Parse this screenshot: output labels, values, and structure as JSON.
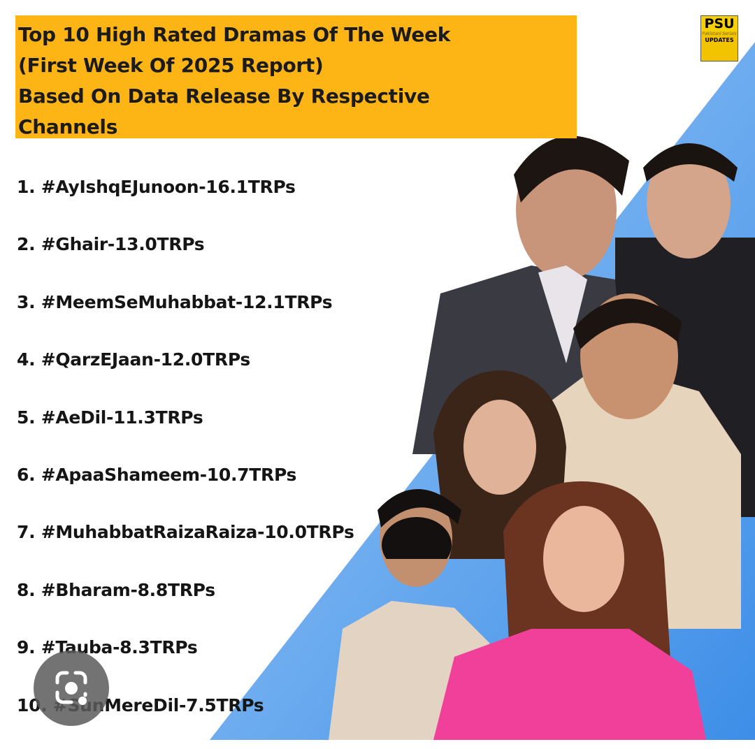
{
  "title_lines": [
    "Top 10 High Rated Dramas Of The Week",
    "(First Week Of 2025 Report)",
    "Based On Data Release By Respective",
    "Channels"
  ],
  "items": [
    "1. #AyIshqEJunoon-16.1TRPs",
    "2. #Ghair-13.0TRPs",
    "3. #MeemSeMuhabbat-12.1TRPs",
    "4. #QarzEJaan-12.0TRPs",
    "5. #AeDil-11.3TRPs",
    "6. #ApaaShameem-10.7TRPs",
    "7. #MuhabbatRaizaRaiza-10.0TRPs",
    "8. #Bharam-8.8TRPs",
    "9. #Tauba-8.3TRPs",
    "10. #SunMereDil-7.5TRPs"
  ],
  "logo": {
    "brand": "PSU",
    "tagline": "Pakistani Serials",
    "sub": "UPDATES"
  },
  "colors": {
    "title_bg": "#fdb515",
    "stripe": "#5aa2ee",
    "lens_button": "#5a5a5a"
  },
  "icons": {
    "lens": "google-lens-icon"
  }
}
